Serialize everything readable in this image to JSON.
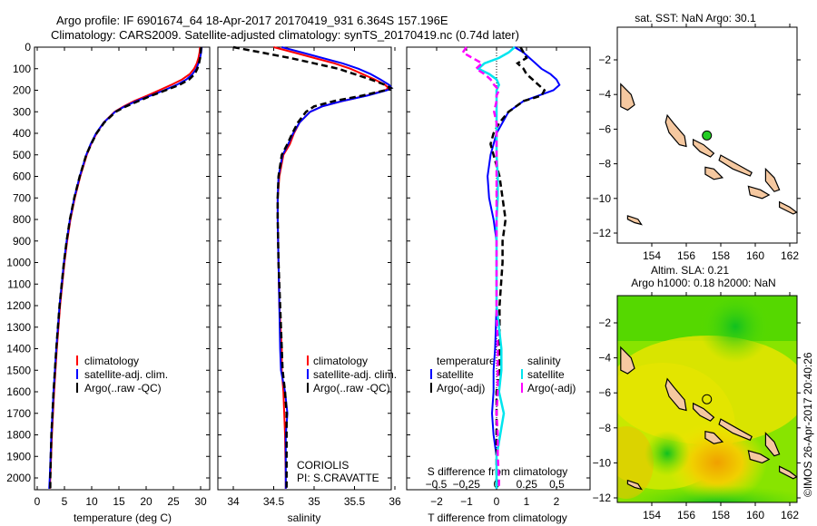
{
  "title": {
    "line1": "Argo profile: IF 6901674_64 18-Apr-2017 20170419_931 6.364S 157.196E",
    "line2": "Climatology: CARS2009. Satellite-adjusted climatology: synTS_20170419.nc (0.74d later)"
  },
  "colors": {
    "climatology": "#ff0000",
    "satellite": "#0000ff",
    "argo": "#000000",
    "sal_satellite": "#00e5ee",
    "sal_argo": "#ff00ff",
    "land": "#f5c8a0",
    "point": "#22cc22"
  },
  "chart_data": [
    {
      "type": "line",
      "id": "temperature",
      "xlabel": "temperature (deg C)",
      "ylabel": "",
      "xlim": [
        -2,
        32
      ],
      "ylim": [
        2060,
        0
      ],
      "xticks": [
        0,
        5,
        10,
        15,
        20,
        25,
        30
      ],
      "yticks": [
        0,
        100,
        200,
        300,
        400,
        500,
        600,
        700,
        800,
        900,
        1000,
        1100,
        1200,
        1300,
        1400,
        1500,
        1600,
        1700,
        1800,
        1900,
        2000
      ],
      "legend": [
        "climatology",
        "satellite-adj. clim.",
        "Argo(..raw -QC)"
      ],
      "depth": [
        0,
        25,
        50,
        75,
        100,
        125,
        150,
        175,
        200,
        225,
        250,
        275,
        300,
        350,
        400,
        450,
        500,
        600,
        700,
        800,
        900,
        1000,
        1200,
        1400,
        1600,
        1800,
        2000,
        2050
      ],
      "series": [
        {
          "name": "climatology",
          "values": [
            29.9,
            29.8,
            29.6,
            29.3,
            28.8,
            28,
            26.6,
            24.6,
            22.4,
            20.2,
            17.8,
            15.9,
            14.2,
            12.2,
            10.9,
            9.9,
            9.1,
            7.9,
            6.9,
            6.1,
            5.5,
            5.0,
            4.2,
            3.6,
            3.1,
            2.7,
            2.4,
            2.3
          ]
        },
        {
          "name": "satellite-adj. clim.",
          "values": [
            30.2,
            30.1,
            29.9,
            29.6,
            29.2,
            28.5,
            27.4,
            25.6,
            23.3,
            20.8,
            18.2,
            16.1,
            14.3,
            12.2,
            10.8,
            9.8,
            9.0,
            7.8,
            6.8,
            6.0,
            5.4,
            4.9,
            4.1,
            3.5,
            3.0,
            2.6,
            2.3,
            2.2
          ]
        },
        {
          "name": "Argo(..raw -QC)",
          "values": [
            30.1,
            30.0,
            29.9,
            29.7,
            29.4,
            28.9,
            27.9,
            26.1,
            23.6,
            21.0,
            18.6,
            16.3,
            14.4,
            12.3,
            10.9,
            9.9,
            9.0,
            7.8,
            6.8,
            6.0,
            5.4,
            4.9,
            4.1,
            3.5,
            3.0,
            2.6,
            2.4,
            2.4
          ]
        }
      ]
    },
    {
      "type": "line",
      "id": "salinity",
      "xlabel": "salinity",
      "xlim": [
        33.8,
        36.1
      ],
      "ylim": [
        2060,
        0
      ],
      "xticks": [
        34,
        34.5,
        35,
        35.5,
        36
      ],
      "legend": [
        "climatology",
        "satellite-adj. clim.",
        "Argo(..raw -QC)"
      ],
      "annotation": [
        "CORIOLIS",
        "PI: S.CRAVATTE"
      ],
      "depth": [
        0,
        25,
        50,
        75,
        100,
        125,
        150,
        175,
        190,
        200,
        225,
        250,
        275,
        300,
        350,
        400,
        450,
        500,
        600,
        700,
        800,
        1000,
        1200,
        1400,
        1500,
        1600,
        1700,
        1800,
        2000,
        2050
      ],
      "series": [
        {
          "name": "climatology",
          "values": [
            34.5,
            34.75,
            35.0,
            35.25,
            35.45,
            35.6,
            35.75,
            35.88,
            35.92,
            35.88,
            35.65,
            35.35,
            35.1,
            34.95,
            34.82,
            34.75,
            34.7,
            34.62,
            34.57,
            34.55,
            34.55,
            34.56,
            34.57,
            34.6,
            34.6,
            34.62,
            34.63,
            34.64,
            34.65,
            34.65
          ]
        },
        {
          "name": "satellite-adj. clim.",
          "values": [
            34.6,
            34.85,
            35.1,
            35.35,
            35.55,
            35.7,
            35.82,
            35.93,
            35.96,
            35.9,
            35.66,
            35.35,
            35.1,
            34.95,
            34.82,
            34.74,
            34.68,
            34.61,
            34.56,
            34.55,
            34.55,
            34.56,
            34.57,
            34.58,
            34.59,
            34.64,
            34.67,
            34.65,
            34.65,
            34.65
          ]
        },
        {
          "name": "Argo(..raw -QC)",
          "values": [
            34.0,
            34.35,
            34.7,
            35.0,
            35.3,
            35.5,
            35.7,
            35.88,
            35.95,
            35.88,
            35.6,
            35.25,
            35.0,
            34.9,
            34.8,
            34.73,
            34.67,
            34.6,
            34.56,
            34.55,
            34.55,
            34.56,
            34.58,
            34.6,
            34.61,
            34.64,
            34.66,
            34.66,
            34.66,
            34.66
          ]
        }
      ]
    },
    {
      "type": "line",
      "id": "differences",
      "xlabel": "T difference from climatology",
      "x2label": "S difference from climatology",
      "xlim": [
        -3,
        3.1
      ],
      "ylim": [
        2060,
        0
      ],
      "xticks": [
        -2,
        -1,
        0,
        1,
        2
      ],
      "x2ticks": [
        "-0.5",
        "-0.25",
        "0",
        "0.25",
        "0.5"
      ],
      "legend_headers": [
        "temperature",
        "salinity"
      ],
      "legend": [
        "satellite",
        "Argo(-adj)",
        "satellite",
        "Argo(-adj)"
      ],
      "depth": [
        0,
        25,
        50,
        75,
        100,
        125,
        150,
        175,
        200,
        225,
        250,
        300,
        350,
        400,
        450,
        500,
        600,
        700,
        800,
        900,
        1000,
        1200,
        1400,
        1500,
        1600,
        1700,
        1800,
        1900,
        2000,
        2050
      ],
      "series": [
        {
          "name": "T satellite",
          "values": [
            0.6,
            0.9,
            1.1,
            1.3,
            1.5,
            1.8,
            2.0,
            2.1,
            1.9,
            1.4,
            0.9,
            0.4,
            0.2,
            0.0,
            -0.1,
            -0.2,
            -0.3,
            -0.25,
            -0.1,
            0,
            0,
            0,
            -0.05,
            -0.1,
            -0.1,
            -0.15,
            -0.1,
            0,
            0,
            0
          ]
        },
        {
          "name": "T Argo(-adj)",
          "values": [
            0.8,
            0.9,
            1.0,
            0.7,
            0.9,
            1.0,
            1.2,
            1.4,
            1.6,
            1.5,
            0.9,
            0.4,
            0.1,
            -0.1,
            -0.2,
            -0.1,
            0.1,
            0.2,
            0.3,
            0.2,
            0.2,
            0.1,
            0.1,
            0.1,
            0.0,
            0.0,
            0.0,
            0.0,
            0.0,
            0.0
          ]
        },
        {
          "name": "S satellite",
          "values": [
            0.15,
            0.1,
            0.02,
            -0.1,
            -0.15,
            -0.06,
            0.0,
            0.02,
            0.0,
            0.0,
            0.0,
            0.0,
            0.0,
            0.0,
            0.0,
            0.0,
            0.01,
            0.01,
            0.0,
            0.0,
            0.0,
            0.0,
            0.04,
            0.04,
            0.02,
            0.06,
            0.03,
            0.0,
            0.0,
            0.0
          ]
        },
        {
          "name": "S Argo(-adj)",
          "values": [
            -0.25,
            -0.28,
            -0.2,
            -0.12,
            -0.17,
            -0.1,
            -0.05,
            -0.02,
            0.02,
            0.0,
            0.0,
            -0.02,
            0.0,
            0.0,
            0.0,
            0.0,
            0.0,
            0.0,
            0.0,
            0.0,
            0.0,
            0.0,
            0.01,
            0.01,
            0.01,
            0.0,
            0.01,
            0.01,
            0.02,
            0.02
          ]
        }
      ]
    },
    {
      "type": "map",
      "id": "sst-map",
      "title": "sat. SST: NaN Argo: 30.1",
      "xlim": [
        152.2,
        162.4
      ],
      "ylim": [
        -12.3,
        -0.5
      ],
      "xticks": [
        154,
        156,
        158,
        160,
        162
      ],
      "yticks": [
        -2,
        -4,
        -6,
        -8,
        -10,
        -12
      ],
      "argo_point": [
        157.196,
        -6.364
      ]
    },
    {
      "type": "map",
      "id": "sla-map",
      "title": "Altim. SLA: 0.21",
      "subtitle": "Argo h1000: 0.18 h2000: NaN",
      "xlim": [
        152.2,
        162.4
      ],
      "ylim": [
        -12.3,
        -0.5
      ],
      "xticks": [
        154,
        156,
        158,
        160,
        162
      ],
      "yticks": [
        -2,
        -4,
        -6,
        -8,
        -10,
        -12
      ],
      "argo_point": [
        157.196,
        -6.364
      ],
      "credit": "©IMOS 26-Apr-2017 20:40:26"
    }
  ],
  "islands": [
    [
      [
        152.2,
        -3.4
      ],
      [
        152.8,
        -4.0
      ],
      [
        153.0,
        -4.6
      ],
      [
        152.6,
        -4.9
      ],
      [
        152.2,
        -4.7
      ]
    ],
    [
      [
        154.9,
        -5.2
      ],
      [
        155.3,
        -5.7
      ],
      [
        155.9,
        -6.4
      ],
      [
        156.0,
        -7.0
      ],
      [
        155.6,
        -6.9
      ],
      [
        155.0,
        -6.2
      ],
      [
        154.8,
        -5.6
      ]
    ],
    [
      [
        156.4,
        -6.6
      ],
      [
        157.0,
        -6.9
      ],
      [
        157.6,
        -7.4
      ],
      [
        157.4,
        -7.6
      ],
      [
        156.8,
        -7.3
      ],
      [
        156.4,
        -6.9
      ]
    ],
    [
      [
        158.0,
        -7.5
      ],
      [
        158.9,
        -8.0
      ],
      [
        159.8,
        -8.5
      ],
      [
        159.7,
        -8.7
      ],
      [
        158.7,
        -8.3
      ],
      [
        157.9,
        -7.8
      ]
    ],
    [
      [
        157.1,
        -8.2
      ],
      [
        157.6,
        -8.3
      ],
      [
        158.1,
        -8.8
      ],
      [
        157.6,
        -8.9
      ],
      [
        157.1,
        -8.6
      ]
    ],
    [
      [
        160.6,
        -8.3
      ],
      [
        161.1,
        -8.8
      ],
      [
        161.4,
        -9.5
      ],
      [
        161.1,
        -9.6
      ],
      [
        160.6,
        -9.0
      ]
    ],
    [
      [
        159.6,
        -9.3
      ],
      [
        160.3,
        -9.5
      ],
      [
        160.8,
        -9.8
      ],
      [
        160.4,
        -10.0
      ],
      [
        159.7,
        -9.8
      ]
    ],
    [
      [
        161.4,
        -10.2
      ],
      [
        162.0,
        -10.5
      ],
      [
        162.4,
        -10.8
      ],
      [
        162.2,
        -10.9
      ],
      [
        161.4,
        -10.5
      ]
    ],
    [
      [
        152.6,
        -11.0
      ],
      [
        153.2,
        -11.2
      ],
      [
        153.4,
        -11.5
      ],
      [
        153.0,
        -11.4
      ],
      [
        152.6,
        -11.2
      ]
    ]
  ]
}
